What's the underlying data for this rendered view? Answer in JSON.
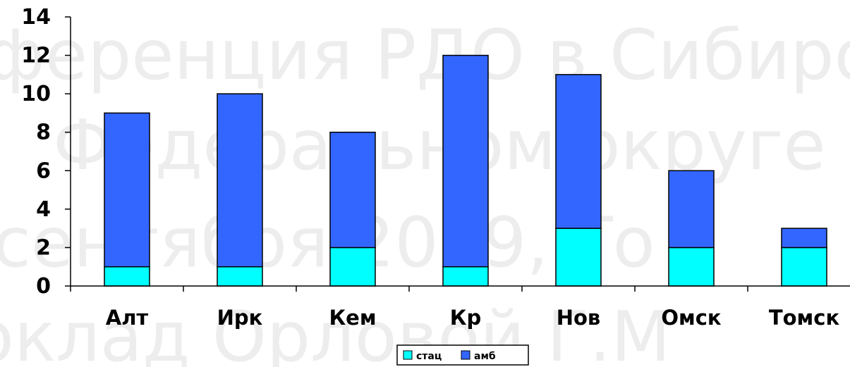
{
  "watermark": {
    "lines": [
      "ференция РДО в Сибиро",
      "Федеральном округе",
      "сентября 2019, То",
      "оклад Орловой Г.М"
    ]
  },
  "chart_data": {
    "type": "bar",
    "stacked": true,
    "categories": [
      "Алт",
      "Ирк",
      "Кем",
      "Кр",
      "Нов",
      "Омск",
      "Томск"
    ],
    "series": [
      {
        "name": "стац",
        "values": [
          1,
          1,
          2,
          1,
          3,
          2,
          2
        ],
        "color": "#00ffff"
      },
      {
        "name": "амб",
        "values": [
          8,
          9,
          6,
          11,
          8,
          4,
          1
        ],
        "color": "#3366ff"
      }
    ],
    "title": "",
    "xlabel": "",
    "ylabel": "",
    "ylim": [
      0,
      14
    ],
    "yticks": [
      0,
      2,
      4,
      6,
      8,
      10,
      12,
      14
    ],
    "grid": false,
    "legend_position": "bottom"
  }
}
